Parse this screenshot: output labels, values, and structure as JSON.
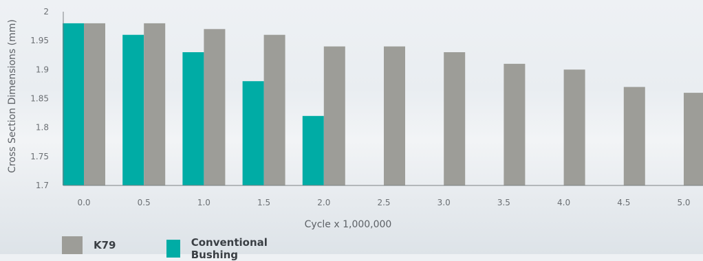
{
  "chart_data": {
    "type": "bar",
    "categories": [
      "0.0",
      "0.5",
      "1.0",
      "1.5",
      "2.0",
      "2.5",
      "3.0",
      "3.5",
      "4.0",
      "4.5",
      "5.0"
    ],
    "series": [
      {
        "name": "Conventional Bushing",
        "color": "#00aca5",
        "values": [
          1.98,
          1.96,
          1.93,
          1.88,
          1.82,
          null,
          null,
          null,
          null,
          null,
          null
        ]
      },
      {
        "name": "K79",
        "color": "#9d9d98",
        "values": [
          1.98,
          1.98,
          1.97,
          1.96,
          1.94,
          1.94,
          1.93,
          1.91,
          1.9,
          1.87,
          1.86
        ]
      }
    ],
    "yticks": [
      "1.7",
      "1.75",
      "1.8",
      "1.85",
      "1.9",
      "1.95",
      "2"
    ],
    "xlabel": "Cycle x 1,000,000",
    "ylabel": "Cross Section Dimensions (mm)",
    "ylim": [
      1.7,
      2.0
    ],
    "grid": false,
    "legend_position": "bottom-left"
  },
  "legend": {
    "k79": "K79",
    "conventional": "Conventional Bushing"
  }
}
